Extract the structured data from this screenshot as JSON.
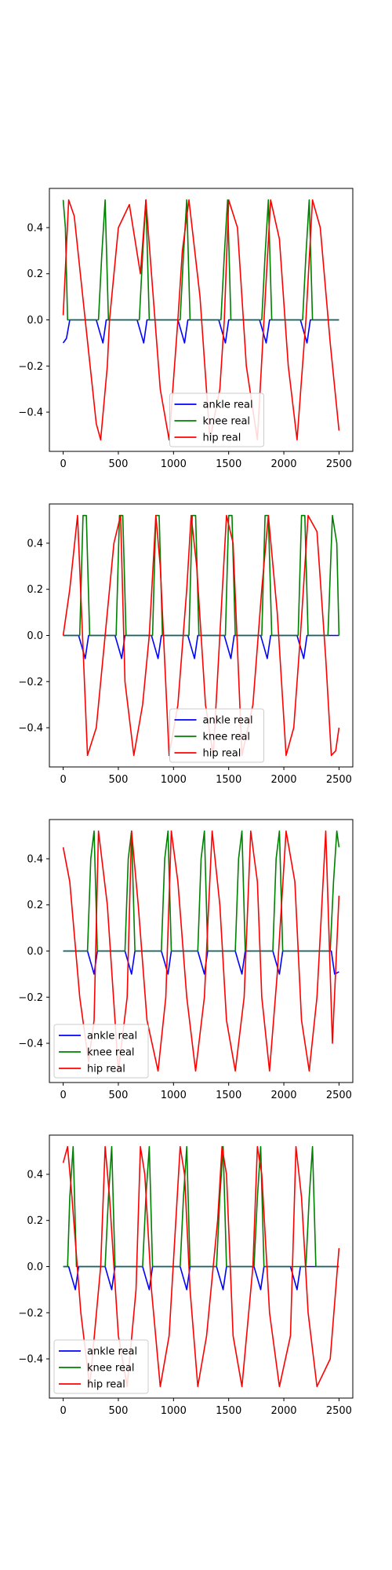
{
  "chart_data": [
    {
      "type": "line",
      "xlim": [
        -125,
        2625
      ],
      "ylim": [
        -0.57,
        0.57
      ],
      "xticks": [
        "0",
        "500",
        "1000",
        "1500",
        "2000",
        "2500"
      ],
      "yticks": [
        "0.4",
        "0.2",
        "0.0",
        "−0.2",
        "−0.4"
      ],
      "legend_position": "lower-center",
      "series": [
        {
          "name": "ankle real",
          "color": "#0000ff",
          "x": [
            0,
            30,
            60,
            300,
            330,
            360,
            390,
            670,
            700,
            730,
            760,
            1040,
            1070,
            1100,
            1130,
            1410,
            1440,
            1470,
            1500,
            1780,
            1810,
            1840,
            1870,
            2150,
            2180,
            2210,
            2240,
            2500
          ],
          "y": [
            -0.1,
            -0.08,
            0,
            0,
            -0.05,
            -0.1,
            0,
            0,
            -0.05,
            -0.1,
            0,
            0,
            -0.05,
            -0.1,
            0,
            0,
            -0.05,
            -0.1,
            0,
            0,
            -0.05,
            -0.1,
            0,
            0,
            -0.05,
            -0.1,
            0,
            0
          ]
        },
        {
          "name": "knee real",
          "color": "#008000",
          "x": [
            0,
            20,
            40,
            320,
            350,
            380,
            410,
            690,
            720,
            750,
            780,
            1060,
            1090,
            1120,
            1150,
            1430,
            1460,
            1490,
            1520,
            1800,
            1830,
            1860,
            1890,
            2170,
            2200,
            2230,
            2260,
            2500
          ],
          "y": [
            0.52,
            0.4,
            0,
            0,
            0.28,
            0.52,
            0,
            0,
            0.28,
            0.52,
            0,
            0,
            0.28,
            0.52,
            0,
            0,
            0.28,
            0.52,
            0,
            0,
            0.28,
            0.52,
            0,
            0,
            0.28,
            0.52,
            0,
            0
          ]
        },
        {
          "name": "hip real",
          "color": "#ff0000",
          "x": [
            0,
            50,
            100,
            200,
            300,
            340,
            400,
            420,
            500,
            600,
            700,
            750,
            800,
            880,
            960,
            1040,
            1080,
            1140,
            1240,
            1330,
            1420,
            1460,
            1500,
            1580,
            1660,
            1760,
            1820,
            1880,
            1960,
            2040,
            2120,
            2200,
            2260,
            2330,
            2420,
            2500
          ],
          "y": [
            0.02,
            0.52,
            0.45,
            0,
            -0.45,
            -0.52,
            -0.2,
            0,
            0.4,
            0.5,
            0.2,
            0.52,
            0.2,
            -0.3,
            -0.52,
            0,
            0.3,
            0.52,
            0.1,
            -0.52,
            -0.3,
            0,
            0.52,
            0.4,
            -0.2,
            -0.52,
            0,
            0.52,
            0.35,
            -0.2,
            -0.52,
            0,
            0.52,
            0.4,
            -0.1,
            -0.48
          ]
        }
      ]
    },
    {
      "type": "line",
      "xlim": [
        -125,
        2625
      ],
      "ylim": [
        -0.57,
        0.57
      ],
      "xticks": [
        "0",
        "500",
        "1000",
        "1500",
        "2000",
        "2500"
      ],
      "yticks": [
        "0.4",
        "0.2",
        "0.0",
        "−0.2",
        "−0.4"
      ],
      "legend_position": "lower-center",
      "series": [
        {
          "name": "ankle real",
          "color": "#0000ff",
          "x": [
            0,
            140,
            170,
            200,
            230,
            470,
            500,
            530,
            560,
            800,
            830,
            860,
            890,
            1130,
            1160,
            1190,
            1220,
            1460,
            1490,
            1520,
            1550,
            1790,
            1820,
            1850,
            1880,
            2120,
            2150,
            2180,
            2210,
            2500
          ],
          "y": [
            0,
            0,
            -0.05,
            -0.1,
            0,
            0,
            -0.05,
            -0.1,
            0,
            0,
            -0.05,
            -0.1,
            0,
            0,
            -0.05,
            -0.1,
            0,
            0,
            -0.05,
            -0.1,
            0,
            0,
            -0.05,
            -0.1,
            0,
            0,
            -0.05,
            -0.1,
            0,
            0
          ]
        },
        {
          "name": "knee real",
          "color": "#008000",
          "x": [
            0,
            150,
            180,
            210,
            240,
            480,
            510,
            540,
            570,
            810,
            840,
            870,
            900,
            1140,
            1170,
            1200,
            1230,
            1470,
            1500,
            1530,
            1560,
            1800,
            1830,
            1860,
            1890,
            2130,
            2160,
            2190,
            2220,
            2400,
            2440,
            2480,
            2500
          ],
          "y": [
            0,
            0,
            0.52,
            0.52,
            0,
            0,
            0.52,
            0.52,
            0,
            0,
            0.52,
            0.52,
            0,
            0,
            0.52,
            0.52,
            0,
            0,
            0.52,
            0.52,
            0,
            0,
            0.52,
            0.52,
            0,
            0,
            0.52,
            0.52,
            0,
            0,
            0.52,
            0.4,
            0
          ]
        },
        {
          "name": "hip real",
          "color": "#ff0000",
          "x": [
            0,
            60,
            130,
            220,
            300,
            380,
            460,
            520,
            560,
            640,
            720,
            780,
            840,
            880,
            960,
            1040,
            1120,
            1160,
            1210,
            1290,
            1360,
            1420,
            1480,
            1540,
            1620,
            1720,
            1800,
            1860,
            1940,
            2020,
            2090,
            2150,
            2220,
            2300,
            2380,
            2430,
            2470,
            2500
          ],
          "y": [
            0,
            0.2,
            0.52,
            -0.52,
            -0.4,
            0,
            0.4,
            0.52,
            -0.2,
            -0.52,
            -0.3,
            0,
            0.52,
            0.3,
            -0.52,
            -0.3,
            0.2,
            0.52,
            0.3,
            -0.3,
            -0.52,
            0,
            0.52,
            0.4,
            -0.52,
            -0.3,
            0.2,
            0.52,
            0.1,
            -0.52,
            -0.4,
            0,
            0.52,
            0.45,
            -0.1,
            -0.52,
            -0.5,
            -0.4
          ]
        }
      ]
    },
    {
      "type": "line",
      "xlim": [
        -125,
        2625
      ],
      "ylim": [
        -0.57,
        0.57
      ],
      "xticks": [
        "0",
        "500",
        "1000",
        "1500",
        "2000",
        "2500"
      ],
      "yticks": [
        "0.4",
        "0.2",
        "0.0",
        "−0.2",
        "−0.4"
      ],
      "legend_position": "lower-left",
      "series": [
        {
          "name": "ankle real",
          "color": "#0000ff",
          "x": [
            0,
            220,
            250,
            280,
            310,
            560,
            590,
            620,
            650,
            890,
            920,
            950,
            980,
            1220,
            1250,
            1280,
            1310,
            1560,
            1590,
            1620,
            1650,
            1900,
            1930,
            1960,
            1990,
            2430,
            2460,
            2500
          ],
          "y": [
            0,
            0,
            -0.05,
            -0.1,
            0,
            0,
            -0.05,
            -0.1,
            0,
            0,
            -0.05,
            -0.1,
            0,
            0,
            -0.05,
            -0.1,
            0,
            0,
            -0.05,
            -0.1,
            0,
            0,
            -0.05,
            -0.1,
            0,
            0,
            -0.1,
            -0.09
          ]
        },
        {
          "name": "knee real",
          "color": "#008000",
          "x": [
            0,
            220,
            250,
            280,
            310,
            560,
            590,
            620,
            650,
            890,
            920,
            950,
            980,
            1220,
            1250,
            1280,
            1310,
            1560,
            1590,
            1620,
            1650,
            1900,
            1930,
            1960,
            1990,
            2420,
            2450,
            2480,
            2500
          ],
          "y": [
            0,
            0,
            0.4,
            0.52,
            0,
            0,
            0.4,
            0.52,
            0,
            0,
            0.4,
            0.52,
            0,
            0,
            0.4,
            0.52,
            0,
            0,
            0.4,
            0.52,
            0,
            0,
            0.4,
            0.52,
            0,
            0,
            0.3,
            0.52,
            0.45
          ]
        },
        {
          "name": "hip real",
          "color": "#ff0000",
          "x": [
            0,
            60,
            150,
            230,
            280,
            320,
            400,
            500,
            580,
            620,
            680,
            760,
            860,
            930,
            980,
            1040,
            1120,
            1200,
            1280,
            1350,
            1420,
            1480,
            1560,
            1640,
            1700,
            1760,
            1800,
            1870,
            1940,
            2020,
            2100,
            2160,
            2230,
            2300,
            2380,
            2440,
            2500
          ],
          "y": [
            0.45,
            0.3,
            -0.2,
            -0.48,
            -0.3,
            0.52,
            0.2,
            -0.52,
            -0.2,
            0.52,
            0.2,
            -0.3,
            -0.52,
            -0.2,
            0.52,
            0.3,
            -0.2,
            -0.52,
            -0.2,
            0.52,
            0.2,
            -0.3,
            -0.52,
            -0.2,
            0.52,
            0.3,
            -0.2,
            -0.52,
            -0.1,
            0.52,
            0.3,
            -0.3,
            -0.52,
            -0.2,
            0.52,
            -0.4,
            0.24
          ]
        }
      ]
    },
    {
      "type": "line",
      "xlim": [
        -125,
        2625
      ],
      "ylim": [
        -0.57,
        0.57
      ],
      "xticks": [
        "0",
        "500",
        "1000",
        "1500",
        "2000",
        "2500"
      ],
      "yticks": [
        "0.4",
        "0.2",
        "0.0",
        "−0.2",
        "−0.4"
      ],
      "legend_position": "lower-left",
      "series": [
        {
          "name": "ankle real",
          "color": "#0000ff",
          "x": [
            0,
            50,
            80,
            110,
            140,
            380,
            410,
            440,
            470,
            720,
            750,
            780,
            810,
            1060,
            1090,
            1120,
            1150,
            1390,
            1420,
            1450,
            1480,
            1730,
            1760,
            1790,
            1820,
            2060,
            2090,
            2120,
            2150,
            2500
          ],
          "y": [
            0,
            0,
            -0.05,
            -0.1,
            0,
            0,
            -0.05,
            -0.1,
            0,
            0,
            -0.05,
            -0.1,
            0,
            0,
            -0.05,
            -0.1,
            0,
            0,
            -0.05,
            -0.1,
            0,
            0,
            -0.05,
            -0.1,
            0,
            0,
            -0.05,
            -0.1,
            0,
            0
          ]
        },
        {
          "name": "knee real",
          "color": "#008000",
          "x": [
            0,
            40,
            60,
            90,
            120,
            380,
            410,
            440,
            470,
            720,
            750,
            780,
            810,
            1060,
            1090,
            1120,
            1150,
            1390,
            1420,
            1450,
            1480,
            1730,
            1760,
            1790,
            1820,
            2200,
            2230,
            2260,
            2290,
            2500
          ],
          "y": [
            0,
            0,
            0.3,
            0.52,
            0,
            0,
            0.3,
            0.52,
            0,
            0,
            0.3,
            0.52,
            0,
            0,
            0.3,
            0.52,
            0,
            0,
            0.3,
            0.52,
            0,
            0,
            0.3,
            0.52,
            0,
            0,
            0.3,
            0.52,
            0,
            0
          ]
        },
        {
          "name": "hip real",
          "color": "#ff0000",
          "x": [
            0,
            40,
            80,
            160,
            240,
            340,
            380,
            420,
            500,
            580,
            660,
            700,
            740,
            800,
            880,
            960,
            1060,
            1100,
            1150,
            1220,
            1300,
            1400,
            1440,
            1480,
            1540,
            1620,
            1720,
            1760,
            1800,
            1870,
            1960,
            2060,
            2110,
            2160,
            2220,
            2300,
            2420,
            2500
          ],
          "y": [
            0.45,
            0.52,
            0.3,
            -0.2,
            -0.52,
            0,
            0.52,
            0.3,
            -0.3,
            -0.52,
            -0.1,
            0.52,
            0.4,
            -0.1,
            -0.52,
            -0.3,
            0.52,
            0.4,
            -0.1,
            -0.52,
            -0.3,
            0.2,
            0.52,
            0.4,
            -0.3,
            -0.52,
            0,
            0.52,
            0.4,
            -0.2,
            -0.52,
            -0.3,
            0.52,
            0.3,
            -0.2,
            -0.52,
            -0.4,
            0.08
          ]
        }
      ]
    }
  ]
}
